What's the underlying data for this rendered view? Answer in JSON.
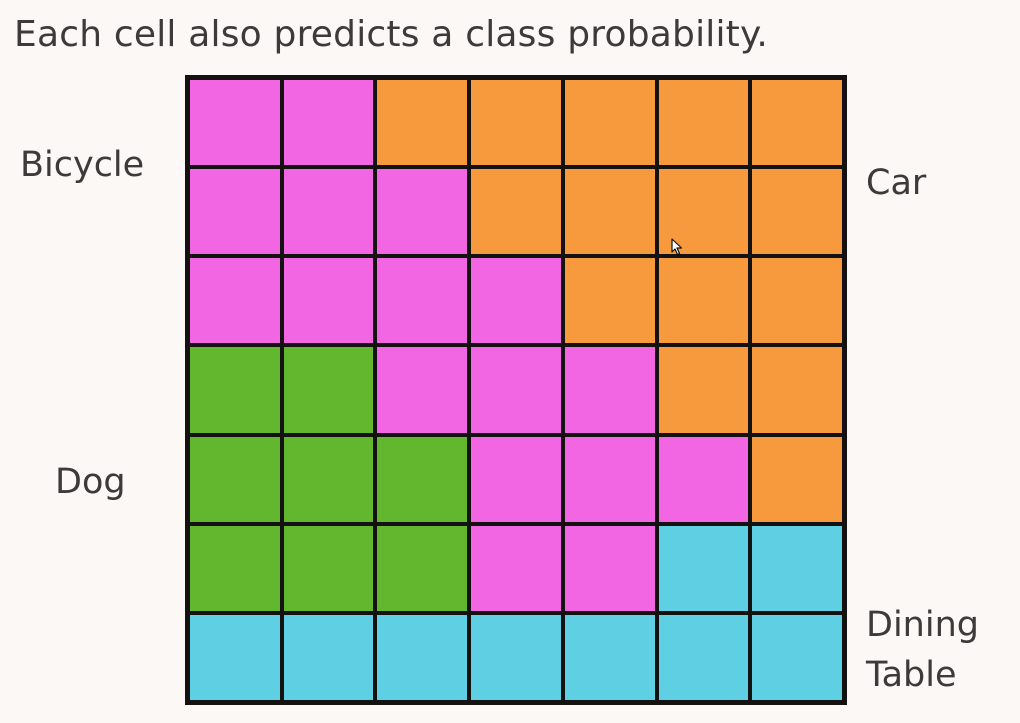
{
  "heading": "Each cell also predicts a class probability.",
  "labels": {
    "bicycle": "Bicycle",
    "car": "Car",
    "dog": "Dog",
    "dining_table_line1": "Dining",
    "dining_table_line2": "Table"
  },
  "classes": {
    "bicycle": {
      "color": "#f266e4"
    },
    "car": {
      "color": "#f79a3e"
    },
    "dog": {
      "color": "#62b72e"
    },
    "dining-table": {
      "color": "#5fd0e4"
    }
  },
  "grid": {
    "rows": 7,
    "cols": 7,
    "cells": [
      [
        "bicycle",
        "bicycle",
        "car",
        "car",
        "car",
        "car",
        "car"
      ],
      [
        "bicycle",
        "bicycle",
        "bicycle",
        "car",
        "car",
        "car",
        "car"
      ],
      [
        "bicycle",
        "bicycle",
        "bicycle",
        "bicycle",
        "car",
        "car",
        "car"
      ],
      [
        "dog",
        "dog",
        "bicycle",
        "bicycle",
        "bicycle",
        "car",
        "car"
      ],
      [
        "dog",
        "dog",
        "dog",
        "bicycle",
        "bicycle",
        "bicycle",
        "car"
      ],
      [
        "dog",
        "dog",
        "dog",
        "bicycle",
        "bicycle",
        "dining-table",
        "dining-table"
      ],
      [
        "dining-table",
        "dining-table",
        "dining-table",
        "dining-table",
        "dining-table",
        "dining-table",
        "dining-table"
      ]
    ]
  },
  "cursor": "arrow-cursor-icon"
}
